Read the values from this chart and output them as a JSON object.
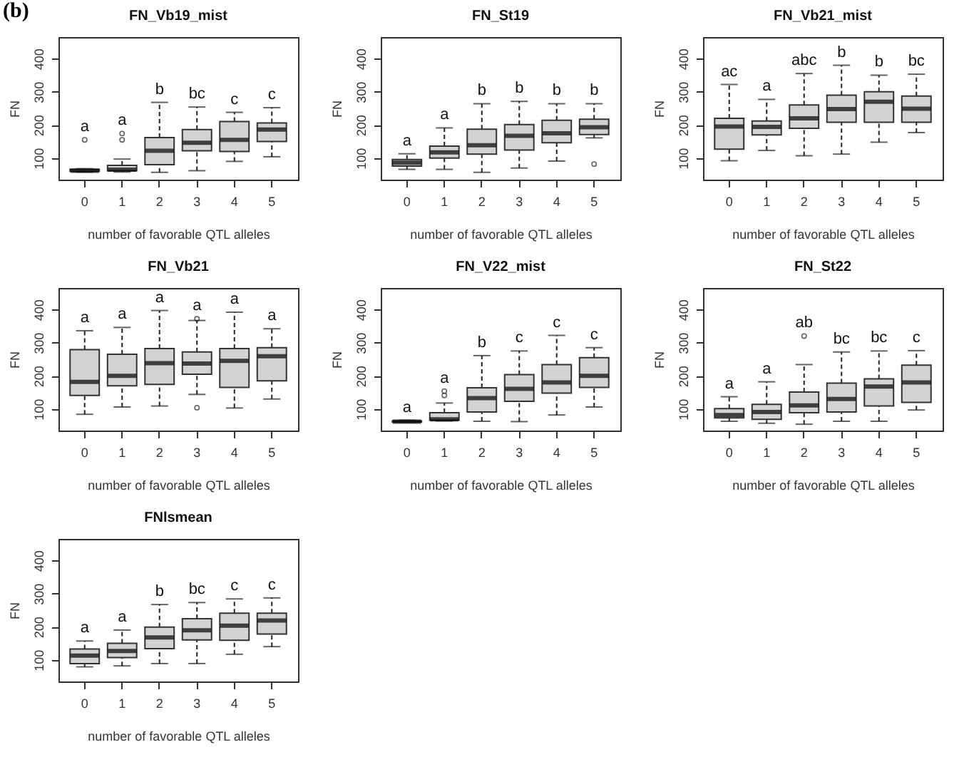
{
  "chart_data": [
    {
      "type": "box",
      "title": "FN_Vb19_mist",
      "xlabel": "number of favorable QTL alleles",
      "ylabel": "FN",
      "categories": [
        "0",
        "1",
        "2",
        "3",
        "4",
        "5"
      ],
      "ylim": [
        35,
        465
      ],
      "yticks": [
        100,
        200,
        300,
        400
      ],
      "grid": false,
      "series": [
        {
          "color": "#d3d3d3",
          "boxes": [
            {
              "low": 58,
              "q1": 60,
              "median": 62,
              "q3": 66,
              "high": 68,
              "outliers": [
                155
              ]
            },
            {
              "low": 58,
              "q1": 62,
              "median": 65,
              "q3": 78,
              "high": 97,
              "outliers": [
                155,
                174
              ]
            },
            {
              "low": 57,
              "q1": 80,
              "median": 122,
              "q3": 162,
              "high": 268
            },
            {
              "low": 62,
              "q1": 122,
              "median": 146,
              "q3": 186,
              "high": 254
            },
            {
              "low": 90,
              "q1": 120,
              "median": 155,
              "q3": 210,
              "high": 238
            },
            {
              "low": 104,
              "q1": 150,
              "median": 186,
              "q3": 206,
              "high": 252
            }
          ]
        }
      ],
      "annotations": [
        "(b)",
        "a",
        "a",
        "b",
        "bc",
        "c",
        "c"
      ]
    },
    {
      "type": "box",
      "title": "FN_St19",
      "xlabel": "number of favorable QTL alleles",
      "ylabel": "FN",
      "categories": [
        "0",
        "1",
        "2",
        "3",
        "4",
        "5"
      ],
      "ylim": [
        35,
        465
      ],
      "yticks": [
        100,
        200,
        300,
        400
      ],
      "grid": false,
      "series": [
        {
          "color": "#d3d3d3",
          "boxes": [
            {
              "low": 66,
              "q1": 76,
              "median": 86,
              "q3": 96,
              "high": 113
            },
            {
              "low": 66,
              "q1": 100,
              "median": 117,
              "q3": 136,
              "high": 191
            },
            {
              "low": 57,
              "q1": 112,
              "median": 139,
              "q3": 187,
              "high": 264
            },
            {
              "low": 70,
              "q1": 124,
              "median": 167,
              "q3": 201,
              "high": 271
            },
            {
              "low": 91,
              "q1": 146,
              "median": 175,
              "q3": 214,
              "high": 264
            },
            {
              "low": 161,
              "q1": 171,
              "median": 193,
              "q3": 217,
              "high": 264,
              "outliers": [
                82
              ]
            }
          ]
        }
      ],
      "annotations": [
        "a",
        "a",
        "b",
        "b",
        "b",
        "b"
      ]
    },
    {
      "type": "box",
      "title": "FN_Vb21_mist",
      "xlabel": "number of favorable QTL alleles",
      "ylabel": "FN",
      "categories": [
        "0",
        "1",
        "2",
        "3",
        "4",
        "5"
      ],
      "ylim": [
        35,
        465
      ],
      "yticks": [
        100,
        200,
        300,
        400
      ],
      "grid": false,
      "series": [
        {
          "color": "#d3d3d3",
          "boxes": [
            {
              "low": 92,
              "q1": 127,
              "median": 195,
              "q3": 220,
              "high": 322
            },
            {
              "low": 123,
              "q1": 170,
              "median": 194,
              "q3": 212,
              "high": 277
            },
            {
              "low": 107,
              "q1": 190,
              "median": 220,
              "q3": 260,
              "high": 355
            },
            {
              "low": 112,
              "q1": 208,
              "median": 248,
              "q3": 290,
              "high": 380
            },
            {
              "low": 148,
              "q1": 208,
              "median": 270,
              "q3": 300,
              "high": 350
            },
            {
              "low": 177,
              "q1": 208,
              "median": 249,
              "q3": 287,
              "high": 353
            }
          ]
        }
      ],
      "annotations": [
        "ac",
        "a",
        "abc",
        "b",
        "b",
        "bc"
      ]
    },
    {
      "type": "box",
      "title": "FN_Vb21",
      "xlabel": "number of favorable QTL alleles",
      "ylabel": "FN",
      "categories": [
        "0",
        "1",
        "2",
        "3",
        "4",
        "5"
      ],
      "ylim": [
        35,
        465
      ],
      "yticks": [
        100,
        200,
        300,
        400
      ],
      "grid": false,
      "series": [
        {
          "color": "#d3d3d3",
          "boxes": [
            {
              "low": 84,
              "q1": 141,
              "median": 182,
              "q3": 279,
              "high": 336
            },
            {
              "low": 106,
              "q1": 170,
              "median": 200,
              "q3": 265,
              "high": 346
            },
            {
              "low": 109,
              "q1": 174,
              "median": 238,
              "q3": 282,
              "high": 397
            },
            {
              "low": 144,
              "q1": 205,
              "median": 237,
              "q3": 272,
              "high": 367,
              "outliers": [
                372,
                104
              ]
            },
            {
              "low": 103,
              "q1": 165,
              "median": 245,
              "q3": 282,
              "high": 392
            },
            {
              "low": 130,
              "q1": 185,
              "median": 259,
              "q3": 285,
              "high": 342
            }
          ]
        }
      ],
      "annotations": [
        "a",
        "a",
        "a",
        "a",
        "a",
        "a"
      ]
    },
    {
      "type": "box",
      "title": "FN_V22_mist",
      "xlabel": "number of favorable QTL alleles",
      "ylabel": "FN",
      "categories": [
        "0",
        "1",
        "2",
        "3",
        "4",
        "5"
      ],
      "ylim": [
        35,
        465
      ],
      "yticks": [
        100,
        200,
        300,
        400
      ],
      "grid": false,
      "series": [
        {
          "color": "#d3d3d3",
          "boxes": [
            {
              "low": 60,
              "q1": 61,
              "median": 62,
              "q3": 64,
              "high": 66
            },
            {
              "low": 64,
              "q1": 66,
              "median": 69,
              "q3": 89,
              "high": 118,
              "outliers": [
                141,
                154
              ]
            },
            {
              "low": 63,
              "q1": 91,
              "median": 133,
              "q3": 164,
              "high": 261
            },
            {
              "low": 62,
              "q1": 123,
              "median": 161,
              "q3": 204,
              "high": 275
            },
            {
              "low": 82,
              "q1": 148,
              "median": 180,
              "q3": 234,
              "high": 322
            },
            {
              "low": 106,
              "q1": 165,
              "median": 200,
              "q3": 255,
              "high": 285
            }
          ]
        }
      ],
      "annotations": [
        "a",
        "a",
        "b",
        "c",
        "c",
        "c"
      ]
    },
    {
      "type": "box",
      "title": "FN_St22",
      "xlabel": "number of favorable QTL alleles",
      "ylabel": "FN",
      "categories": [
        "0",
        "1",
        "2",
        "3",
        "4",
        "5"
      ],
      "ylim": [
        35,
        465
      ],
      "yticks": [
        100,
        200,
        300,
        400
      ],
      "grid": false,
      "series": [
        {
          "color": "#d3d3d3",
          "boxes": [
            {
              "low": 63,
              "q1": 73,
              "median": 82,
              "q3": 101,
              "high": 137
            },
            {
              "low": 57,
              "q1": 69,
              "median": 91,
              "q3": 114,
              "high": 182
            },
            {
              "low": 54,
              "q1": 89,
              "median": 111,
              "q3": 151,
              "high": 234,
              "outliers": [
                320
              ]
            },
            {
              "low": 63,
              "q1": 91,
              "median": 130,
              "q3": 178,
              "high": 272
            },
            {
              "low": 63,
              "q1": 109,
              "median": 168,
              "q3": 191,
              "high": 275
            },
            {
              "low": 97,
              "q1": 120,
              "median": 180,
              "q3": 232,
              "high": 276
            }
          ]
        }
      ],
      "annotations": [
        "a",
        "a",
        "ab",
        "bc",
        "bc",
        "c"
      ]
    },
    {
      "type": "box",
      "title": "FNlsmean",
      "xlabel": "number of favorable QTL alleles",
      "ylabel": "FN",
      "categories": [
        "0",
        "1",
        "2",
        "3",
        "4",
        "5"
      ],
      "ylim": [
        35,
        465
      ],
      "yticks": [
        100,
        200,
        300,
        400
      ],
      "grid": false,
      "series": [
        {
          "color": "#d3d3d3",
          "boxes": [
            {
              "low": 79,
              "q1": 89,
              "median": 113,
              "q3": 133,
              "high": 157
            },
            {
              "low": 82,
              "q1": 107,
              "median": 127,
              "q3": 150,
              "high": 190
            },
            {
              "low": 89,
              "q1": 134,
              "median": 168,
              "q3": 199,
              "high": 267
            },
            {
              "low": 89,
              "q1": 160,
              "median": 189,
              "q3": 224,
              "high": 273
            },
            {
              "low": 117,
              "q1": 159,
              "median": 203,
              "q3": 241,
              "high": 284
            },
            {
              "low": 140,
              "q1": 178,
              "median": 219,
              "q3": 241,
              "high": 287
            }
          ]
        }
      ],
      "annotations": [
        "a",
        "a",
        "b",
        "bc",
        "c",
        "c"
      ]
    }
  ]
}
